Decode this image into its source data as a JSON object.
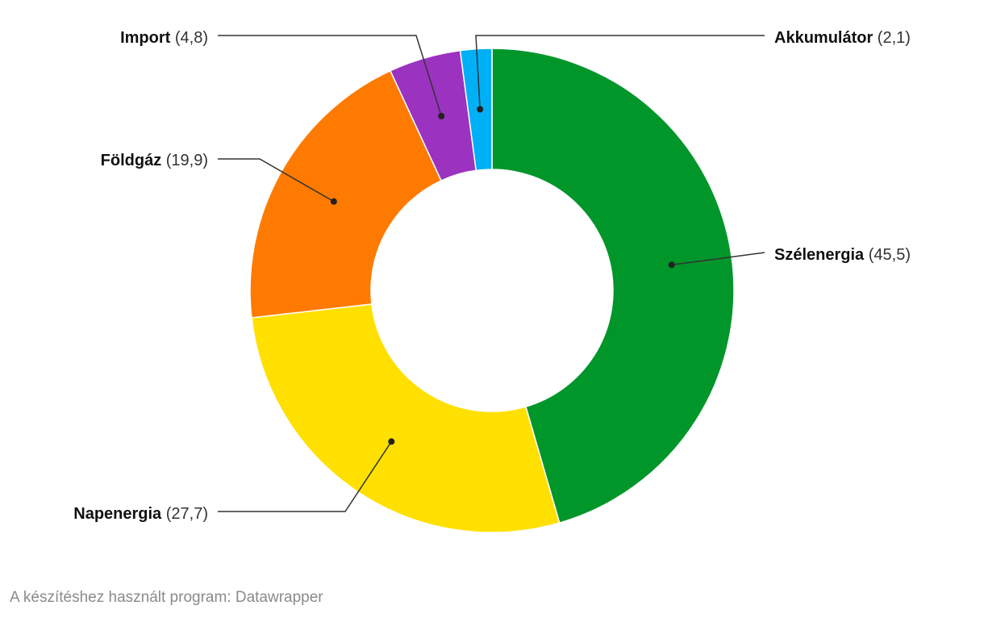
{
  "chart_data": {
    "type": "pie",
    "variant": "donut",
    "title": "",
    "unit": "",
    "slices": [
      {
        "name": "Szélenergia",
        "value": 45.5,
        "value_label": "(45,5)",
        "color": "#00962a"
      },
      {
        "name": "Napenergia",
        "value": 27.7,
        "value_label": "(27,7)",
        "color": "#ffe000"
      },
      {
        "name": "Földgáz",
        "value": 19.9,
        "value_label": "(19,9)",
        "color": "#ff7a00"
      },
      {
        "name": "Import",
        "value": 4.8,
        "value_label": "(4,8)",
        "color": "#9b32c0"
      },
      {
        "name": "Akkumulátor",
        "value": 2.1,
        "value_label": "(2,1)",
        "color": "#00b0f6"
      }
    ]
  },
  "footer": {
    "credit": "A készítéshez használt program: Datawrapper"
  }
}
